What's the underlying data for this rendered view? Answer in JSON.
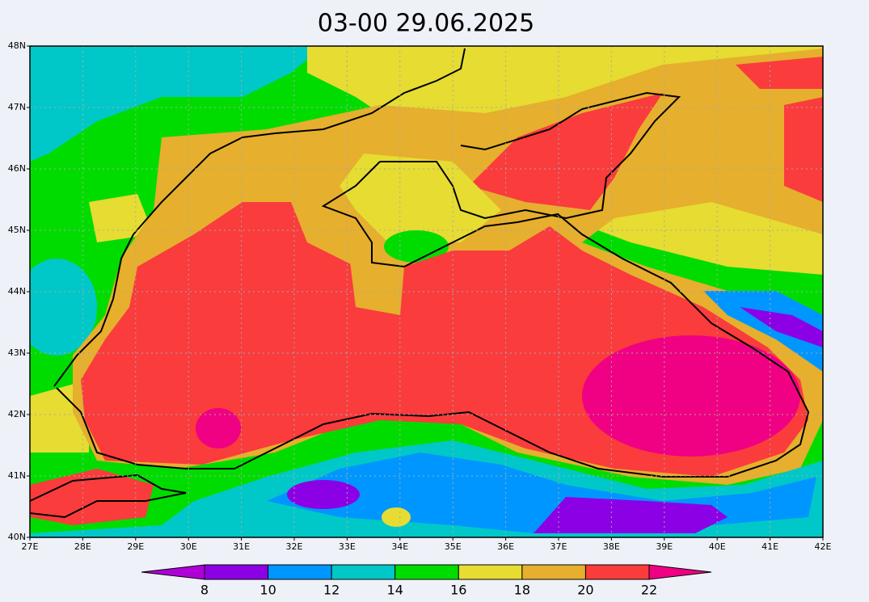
{
  "title": "03-00    29.06.2025",
  "map": {
    "lon_range": [
      27,
      42
    ],
    "lat_range": [
      40,
      48
    ],
    "lon_ticks": [
      {
        "value": 27,
        "label": "27E"
      },
      {
        "value": 28,
        "label": "28E"
      },
      {
        "value": 29,
        "label": "29E"
      },
      {
        "value": 30,
        "label": "30E"
      },
      {
        "value": 31,
        "label": "31E"
      },
      {
        "value": 32,
        "label": "32E"
      },
      {
        "value": 33,
        "label": "33E"
      },
      {
        "value": 34,
        "label": "34E"
      },
      {
        "value": 35,
        "label": "35E"
      },
      {
        "value": 36,
        "label": "36E"
      },
      {
        "value": 37,
        "label": "37E"
      },
      {
        "value": 38,
        "label": "38E"
      },
      {
        "value": 39,
        "label": "39E"
      },
      {
        "value": 40,
        "label": "40E"
      },
      {
        "value": 41,
        "label": "41E"
      },
      {
        "value": 42,
        "label": "42E"
      }
    ],
    "lat_ticks": [
      {
        "value": 40,
        "label": "40N"
      },
      {
        "value": 41,
        "label": "41N"
      },
      {
        "value": 42,
        "label": "42N"
      },
      {
        "value": 43,
        "label": "43N"
      },
      {
        "value": 44,
        "label": "44N"
      },
      {
        "value": 45,
        "label": "45N"
      },
      {
        "value": 46,
        "label": "46N"
      },
      {
        "value": 47,
        "label": "47N"
      },
      {
        "value": 48,
        "label": "48N"
      }
    ],
    "grid": true
  },
  "colorbar": {
    "ticks": [
      8,
      10,
      12,
      14,
      16,
      18,
      20,
      22
    ],
    "colors": [
      "#b000d8",
      "#8c00e6",
      "#0096ff",
      "#00c8c8",
      "#00dc00",
      "#e6dc32",
      "#e6af2d",
      "#fa3c3c",
      "#f00082"
    ]
  }
}
